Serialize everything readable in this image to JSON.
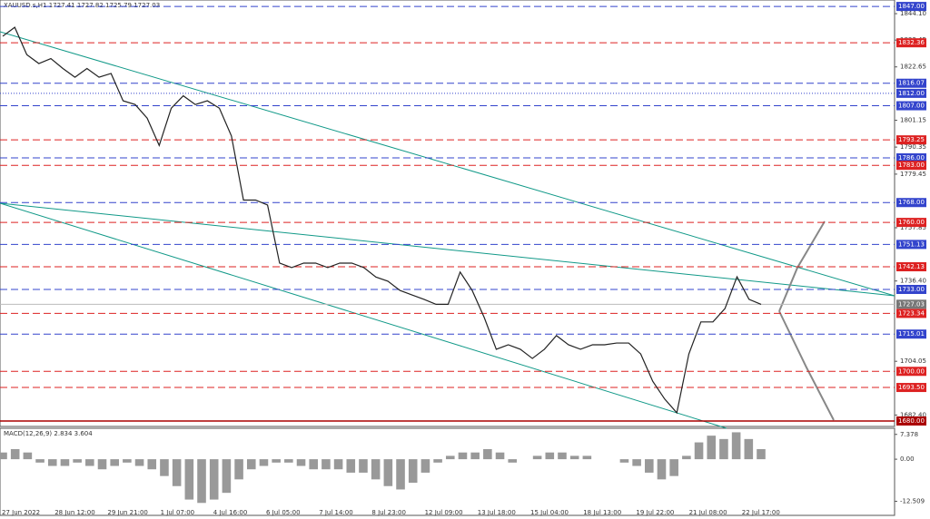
{
  "chart_data": [
    {
      "type": "line",
      "title": "XAUUSD.s,H1  1727.41 1727.82 1725.79 1727.03",
      "ylim": [
        1677.8,
        1849.6
      ],
      "yticks": [
        {
          "value": 1844.1,
          "label": "1844.10"
        },
        {
          "value": 1833.45,
          "label": "1833.45"
        },
        {
          "value": 1822.65,
          "label": "1822.65"
        },
        {
          "value": 1801.15,
          "label": "1801.15"
        },
        {
          "value": 1790.35,
          "label": "1790.35"
        },
        {
          "value": 1779.45,
          "label": "1779.45"
        },
        {
          "value": 1757.85,
          "label": "1757.85"
        },
        {
          "value": 1736.4,
          "label": "1736.40"
        },
        {
          "value": 1704.05,
          "label": "1704.05"
        },
        {
          "value": 1682.4,
          "label": "1682.40"
        }
      ],
      "levels": [
        {
          "value": 1847,
          "label": "1847.00",
          "color": "#3344cc"
        },
        {
          "value": 1832.36,
          "label": "1832.36",
          "color": "#dd2222"
        },
        {
          "value": 1816.07,
          "label": "1816.07",
          "color": "#3344cc"
        },
        {
          "value": 1812,
          "label": "1812.00",
          "color": "#3344cc",
          "style": "dotted"
        },
        {
          "value": 1807,
          "label": "1807.00",
          "color": "#3344cc"
        },
        {
          "value": 1793.25,
          "label": "1793.25",
          "color": "#dd2222"
        },
        {
          "value": 1786,
          "label": "1786.00",
          "color": "#3344cc"
        },
        {
          "value": 1783,
          "label": "1783.00",
          "color": "#dd2222"
        },
        {
          "value": 1768,
          "label": "1768.00",
          "color": "#3344cc"
        },
        {
          "value": 1760,
          "label": "1760.00",
          "color": "#dd2222"
        },
        {
          "value": 1751.13,
          "label": "1751.13",
          "color": "#3344cc"
        },
        {
          "value": 1742.13,
          "label": "1742.13",
          "color": "#dd2222"
        },
        {
          "value": 1733,
          "label": "1733.00",
          "color": "#3344cc"
        },
        {
          "value": 1723.34,
          "label": "1723.34",
          "color": "#dd2222"
        },
        {
          "value": 1715.01,
          "label": "1715.01",
          "color": "#3344cc"
        },
        {
          "value": 1700,
          "label": "1700.00",
          "color": "#dd2222"
        },
        {
          "value": 1693.5,
          "label": "1693.50",
          "color": "#dd2222"
        },
        {
          "value": 1680,
          "label": "1680.00",
          "color": "#aa0000",
          "style": "solid"
        }
      ],
      "current": 1727.03,
      "x_labels": [
        "27 Jun 2022",
        "28 Jun 12:00",
        "29 Jun 21:00",
        "1 Jul 07:00",
        "4 Jul 16:00",
        "6 Jul 05:00",
        "7 Jul 14:00",
        "8 Jul 23:00",
        "12 Jul 09:00",
        "13 Jul 18:00",
        "15 Jul 04:00",
        "18 Jul 13:00",
        "19 Jul 22:00",
        "21 Jul 08:00",
        "22 Jul 17:00"
      ],
      "color": "#222222",
      "values": [
        1835,
        1838.6,
        1827.6,
        1824,
        1826,
        1822,
        1818.5,
        1822,
        1818.5,
        1820,
        1809,
        1807.5,
        1802,
        1791,
        1806,
        1811,
        1807.5,
        1809,
        1806,
        1794.8,
        1769,
        1769,
        1767,
        1743.6,
        1741.8,
        1743.6,
        1743.6,
        1741.8,
        1743.6,
        1743.6,
        1741.8,
        1738,
        1736.3,
        1732.6,
        1730.8,
        1729,
        1727,
        1727,
        1740,
        1732.6,
        1721.7,
        1708.9,
        1710.7,
        1708.9,
        1705.2,
        1708.9,
        1714.4,
        1710.7,
        1708.9,
        1710.7,
        1710.7,
        1711.4,
        1711.4,
        1707,
        1696,
        1688.8,
        1683.3,
        1707,
        1719.9,
        1719.9,
        1725.3,
        1738.1,
        1729,
        1727
      ]
    },
    {
      "type": "bar",
      "title": "MACD(12,26,9) 2.834 3.604",
      "ylim": [
        -16.7,
        9.2
      ],
      "yticks": [
        7.378,
        {
          "value": 0,
          "label": "0.00"
        },
        -12.509
      ],
      "color": "#999999",
      "values": [
        2,
        3,
        2,
        -1,
        -2,
        -2,
        -1,
        -2,
        -3,
        -2,
        -1,
        -2,
        -3,
        -5,
        -8,
        -12,
        -13,
        -12,
        -10,
        -6,
        -3,
        -2,
        -1,
        -1,
        -2,
        -3,
        -3,
        -3,
        -4,
        -4,
        -6,
        -8,
        -9,
        -7,
        -4,
        -1,
        1,
        2,
        2,
        3,
        2,
        -1,
        0,
        1,
        2,
        2,
        1,
        1,
        0,
        0,
        -1,
        -2,
        -4,
        -6,
        -5,
        1,
        5,
        7,
        6,
        8,
        6,
        3
      ]
    }
  ]
}
